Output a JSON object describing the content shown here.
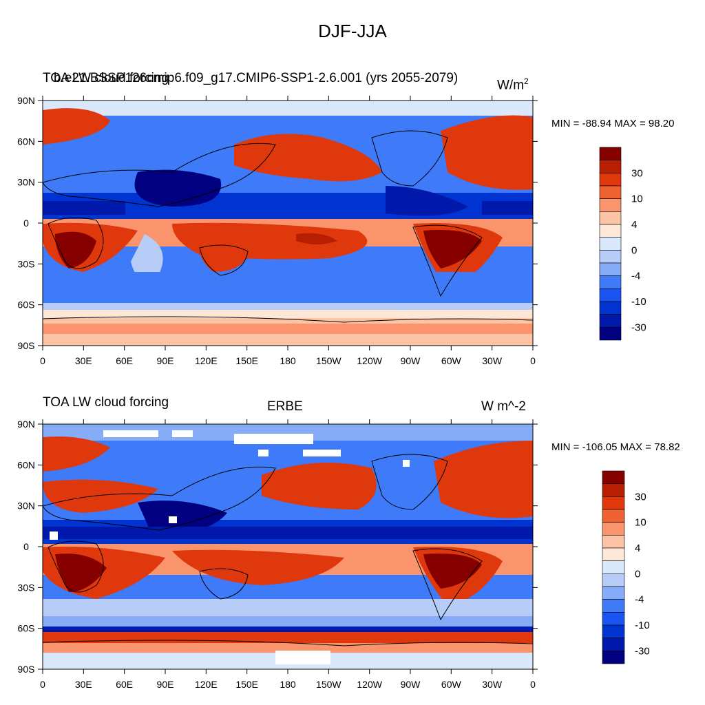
{
  "page": {
    "title": "DJF-JJA"
  },
  "colors": {
    "scale": [
      "#000080",
      "#0019aa",
      "#0033d0",
      "#1a55f2",
      "#3f7af8",
      "#86acf8",
      "#b7cdf8",
      "#dae8fb",
      "#fde8d8",
      "#fcc3a4",
      "#f9946d",
      "#ee6232",
      "#e0380d",
      "#b71e02",
      "#860000"
    ],
    "land_outline": "#000000",
    "missing": "#ffffff"
  },
  "colorbar_labels": [
    "30",
    "10",
    "4",
    "0",
    "-4",
    "-10",
    "-30"
  ],
  "x_ticks": [
    "0",
    "30E",
    "60E",
    "90E",
    "120E",
    "150E",
    "180",
    "150W",
    "120W",
    "90W",
    "60W",
    "30W",
    "0"
  ],
  "y_ticks": [
    "90N",
    "60N",
    "30N",
    "0",
    "30S",
    "60S",
    "90S"
  ],
  "panels": [
    {
      "left_title_a": "TOA LW cloud forcing",
      "left_title_b": "b.e21.BSSP126cmip6.f09_g17.CMIP6-SSP1-2.6.001 (yrs 2055-2079)",
      "center_title": "",
      "units": "W/m",
      "units_sup": "2",
      "stats": "MIN = -88.94 MAX =  98.20"
    },
    {
      "left_title_a": "TOA LW cloud forcing",
      "left_title_b": "",
      "center_title": "ERBE",
      "units": "W m^-2",
      "units_sup": "",
      "stats": "MIN = -106.05 MAX =  78.82"
    }
  ]
}
